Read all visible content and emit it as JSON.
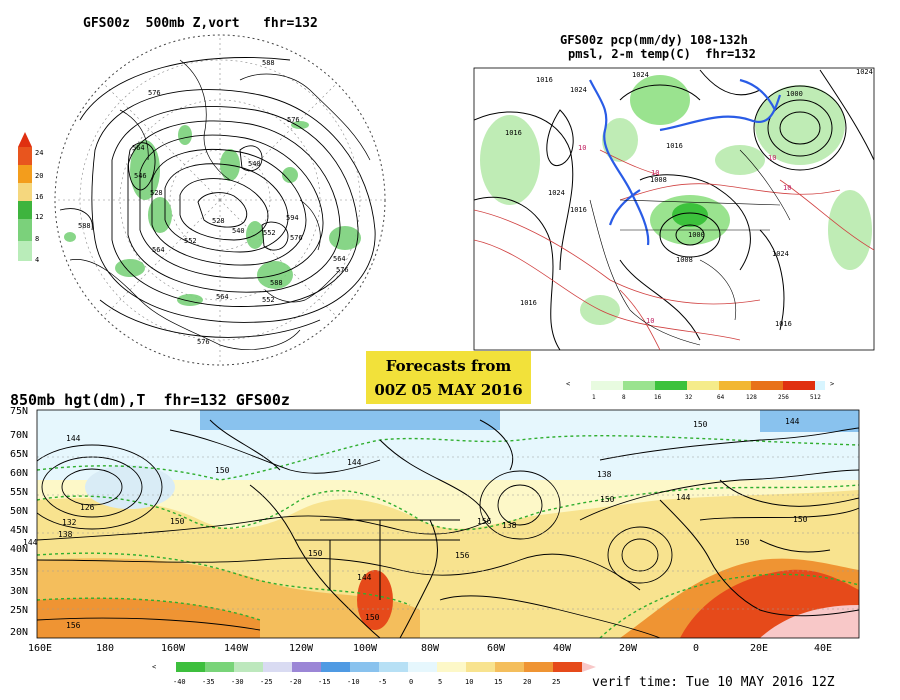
{
  "polar_panel": {
    "title": "GFS00z  500mb Z,vort   fhr=132",
    "colorbar_labels": [
      "24",
      "20",
      "16",
      "12",
      "8",
      "4"
    ],
    "colorbar_colors": [
      "#e8551e",
      "#f39d1c",
      "#f5d77e",
      "#3eb43e",
      "#7bd17b",
      "#b9ecb9"
    ],
    "contour_labels": [
      "588",
      "576",
      "576",
      "564",
      "546",
      "528",
      "540",
      "540",
      "552",
      "564",
      "576",
      "552",
      "588",
      "594",
      "576",
      "564",
      "564",
      "552",
      "528",
      "576",
      "588"
    ]
  },
  "qpf_panel": {
    "title_line1": "GFS00z pcp(mm/dy) 108-132h",
    "title_line2": "pmsl, 2-m temp(C)  fhr=132",
    "isobar_labels": [
      "1016",
      "1024",
      "1024",
      "1016",
      "1024",
      "1008",
      "1016",
      "1008",
      "1016",
      "1000",
      "1024",
      "1016",
      "1000",
      "1024",
      "1016"
    ],
    "temp_labels": [
      "10",
      "10",
      "10",
      "10",
      "10"
    ],
    "colorbar_labels": [
      "1",
      "8",
      "16",
      "32",
      "64",
      "128",
      "256",
      "512"
    ],
    "colorbar_colors": [
      "#e8fbe0",
      "#9ae38f",
      "#3cc23c",
      "#f5ec8a",
      "#f2b733",
      "#e8721a",
      "#e03010",
      "#d8f5ff"
    ]
  },
  "forecast_box": {
    "line1": "Forecasts from",
    "line2": "00Z 05 MAY 2016"
  },
  "h850_panel": {
    "title": "850mb hgt(dm),T  fhr=132 GFS00z",
    "lat_labels": [
      "75N",
      "70N",
      "65N",
      "60N",
      "55N",
      "50N",
      "45N",
      "40N",
      "35N",
      "30N",
      "25N",
      "20N"
    ],
    "lon_labels": [
      "160E",
      "180",
      "160W",
      "140W",
      "120W",
      "100W",
      "80W",
      "60W",
      "40W",
      "20W",
      "0",
      "20E",
      "40E"
    ],
    "height_labels": [
      "144",
      "150",
      "144",
      "138",
      "150",
      "144",
      "126",
      "132",
      "138",
      "144",
      "150",
      "150",
      "156",
      "144",
      "150",
      "138",
      "150",
      "156",
      "144",
      "150",
      "150",
      "156"
    ],
    "colorbar_labels": [
      "-40",
      "-35",
      "-30",
      "-25",
      "-20",
      "-15",
      "-10",
      "-5",
      "0",
      "5",
      "10",
      "15",
      "20",
      "25"
    ],
    "colorbar_colors": [
      "#3dbf3d",
      "#79d479",
      "#bde8bd",
      "#d9dbf2",
      "#9b86d6",
      "#4f9ae3",
      "#89c2ee",
      "#b7e0f5",
      "#e6f7fd",
      "#fdf8c8",
      "#f8e38f",
      "#f4be5c",
      "#ef9433",
      "#e64a1a"
    ]
  },
  "verif_time": "verif time: Tue 10 MAY 2016 12Z"
}
